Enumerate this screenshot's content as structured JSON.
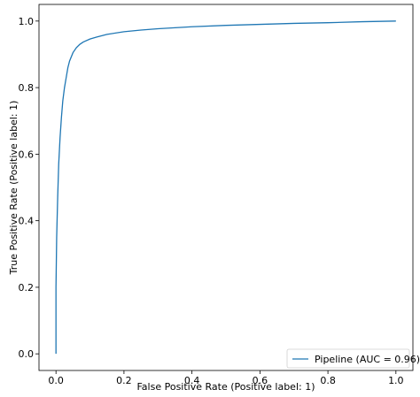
{
  "chart_data": {
    "type": "line",
    "xlabel": "False Positive Rate (Positive label: 1)",
    "ylabel": "True Positive Rate (Positive label: 1)",
    "xlim": [
      -0.05,
      1.05
    ],
    "ylim": [
      -0.05,
      1.05
    ],
    "xticks": [
      "0.0",
      "0.2",
      "0.4",
      "0.6",
      "0.8",
      "1.0"
    ],
    "yticks": [
      "0.0",
      "0.2",
      "0.4",
      "0.6",
      "0.8",
      "1.0"
    ],
    "grid": false,
    "legend_position": "lower-right",
    "series": [
      {
        "name": "Pipeline (AUC = 0.96)",
        "color": "#1f77b4",
        "x": [
          0.0,
          0.0,
          0.002,
          0.005,
          0.008,
          0.012,
          0.016,
          0.02,
          0.025,
          0.03,
          0.035,
          0.04,
          0.05,
          0.06,
          0.07,
          0.08,
          0.1,
          0.12,
          0.15,
          0.2,
          0.25,
          0.3,
          0.4,
          0.5,
          0.6,
          0.7,
          0.8,
          0.9,
          0.95,
          1.0
        ],
        "y": [
          0.0,
          0.2,
          0.35,
          0.47,
          0.57,
          0.65,
          0.71,
          0.76,
          0.8,
          0.83,
          0.86,
          0.88,
          0.905,
          0.92,
          0.93,
          0.937,
          0.946,
          0.952,
          0.96,
          0.968,
          0.973,
          0.977,
          0.983,
          0.987,
          0.99,
          0.993,
          0.995,
          0.998,
          0.999,
          1.0
        ]
      }
    ]
  }
}
